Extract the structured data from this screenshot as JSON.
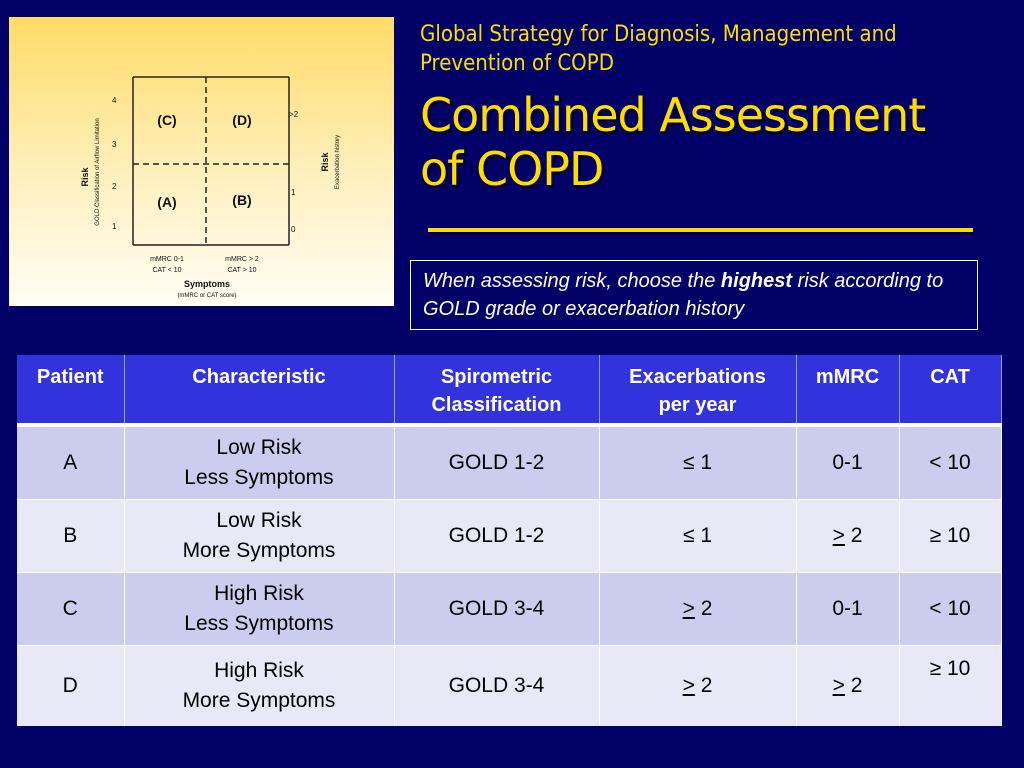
{
  "figure": {
    "quadrants": [
      "(C)",
      "(D)",
      "(A)",
      "(B)"
    ],
    "left_axis_ticks": [
      "4",
      "3",
      "2",
      "1"
    ],
    "right_axis_ticks": [
      ">2",
      "1",
      "0"
    ],
    "left_axis_title": "Risk",
    "left_axis_subtitle": "GOLD Classification of Airflow Limitation",
    "right_axis_title": "Risk",
    "right_axis_subtitle": "Exacerbation history",
    "x_left_label_1": "mMRC 0-1",
    "x_left_label_2": "CAT < 10",
    "x_right_label_1": "mMRC > 2",
    "x_right_label_2": "CAT > 10",
    "x_title": "Symptoms",
    "x_subtitle": "(mMRC or CAT score)"
  },
  "header": {
    "subtitle_line1": "Global Strategy for Diagnosis, Management and",
    "subtitle_line2": "Prevention of COPD",
    "title_line1": "Combined Assessment",
    "title_line2": "of COPD"
  },
  "note": {
    "before": "When assessing risk, choose the ",
    "emphasis": "highest",
    "after": " risk according to GOLD grade or exacerbation history"
  },
  "table": {
    "headers": {
      "patient": "Patient",
      "characteristic": "Characteristic",
      "spiro_1": "Spirometric",
      "spiro_2": "Classification",
      "exac_1": "Exacerbations",
      "exac_2": "per year",
      "mmrc": "mMRC",
      "cat": "CAT"
    },
    "rows": [
      {
        "patient": "A",
        "char_1": "Low Risk",
        "char_2": "Less Symptoms",
        "spiro": "GOLD 1-2",
        "exac": "≤ 1",
        "mmrc": "0-1",
        "cat": "< 10"
      },
      {
        "patient": "B",
        "char_1": "Low Risk",
        "char_2": "More Symptoms",
        "spiro": "GOLD 1-2",
        "exac": "≤ 1",
        "mmrc_sym": ">",
        "mmrc_num": " 2",
        "cat": "≥ 10"
      },
      {
        "patient": "C",
        "char_1": "High Risk",
        "char_2": "Less Symptoms",
        "spiro": "GOLD 3-4",
        "exac_sym": ">",
        "exac_num": " 2",
        "mmrc": "0-1",
        "cat": "< 10"
      },
      {
        "patient": "D",
        "char_1": "High Risk",
        "char_2": "More Symptoms",
        "spiro": "GOLD 3-4",
        "exac_sym": ">",
        "exac_num": " 2",
        "mmrc_sym": ">",
        "mmrc_num": " 2",
        "cat": "≥ 10"
      }
    ]
  }
}
